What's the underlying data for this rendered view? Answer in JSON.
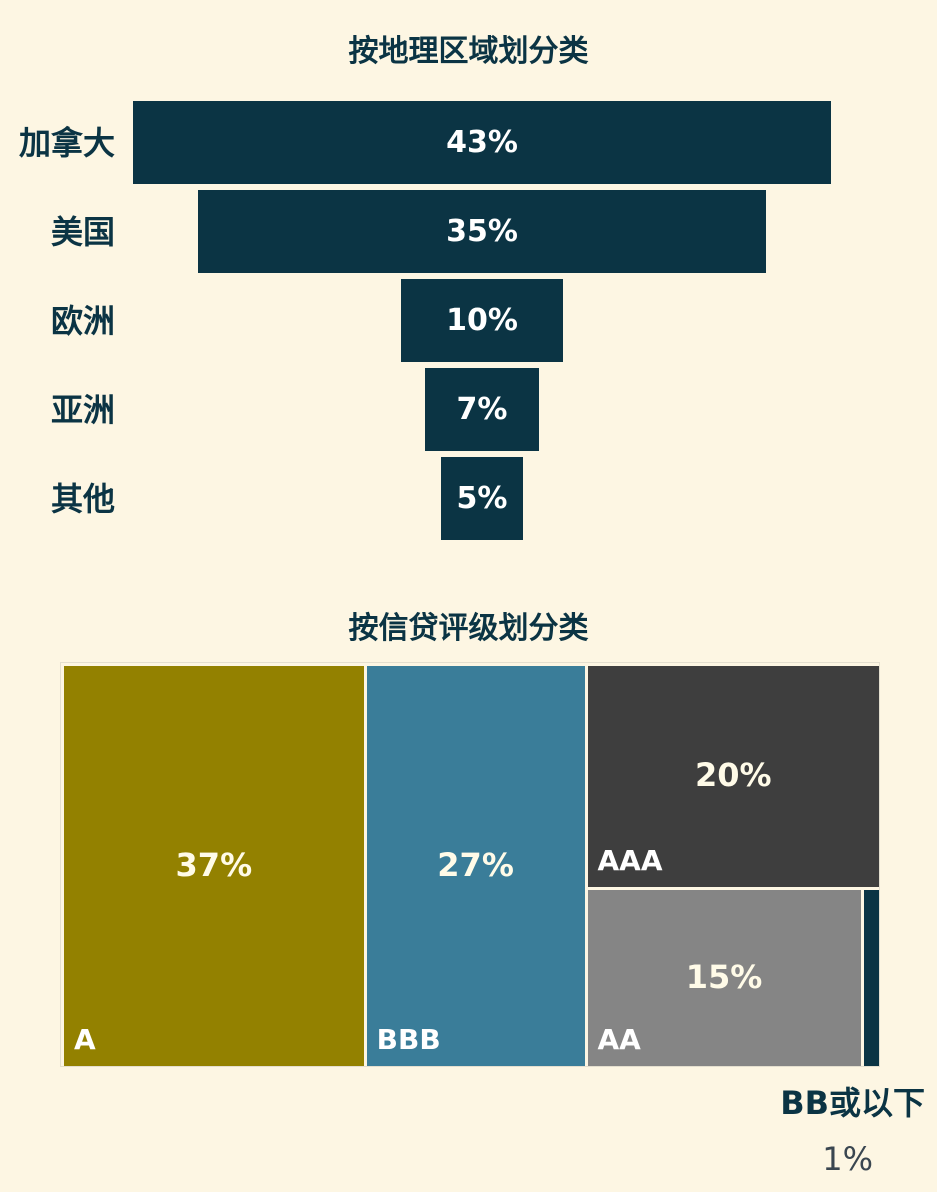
{
  "chart_data": [
    {
      "type": "bar",
      "title": "按地理区域划分类",
      "categories": [
        "加拿大",
        "美国",
        "欧洲",
        "亚洲",
        "其他"
      ],
      "values": [
        43,
        35,
        10,
        7,
        5
      ],
      "labels": [
        "43%",
        "35%",
        "10%",
        "7%",
        "5%"
      ],
      "color": "#0b3444"
    },
    {
      "type": "treemap",
      "title": "按信贷评级划分类",
      "items": [
        {
          "name": "A",
          "value": 37,
          "label": "37%",
          "color": "#938100"
        },
        {
          "name": "BBB",
          "value": 27,
          "label": "27%",
          "color": "#3a7d99"
        },
        {
          "name": "AAA",
          "value": 20,
          "label": "20%",
          "color": "#3e3e3e"
        },
        {
          "name": "AA",
          "value": 15,
          "label": "15%",
          "color": "#858585"
        },
        {
          "name": "BB或以下",
          "value": 1,
          "label": "1%",
          "color": "#0b3444"
        }
      ]
    }
  ]
}
